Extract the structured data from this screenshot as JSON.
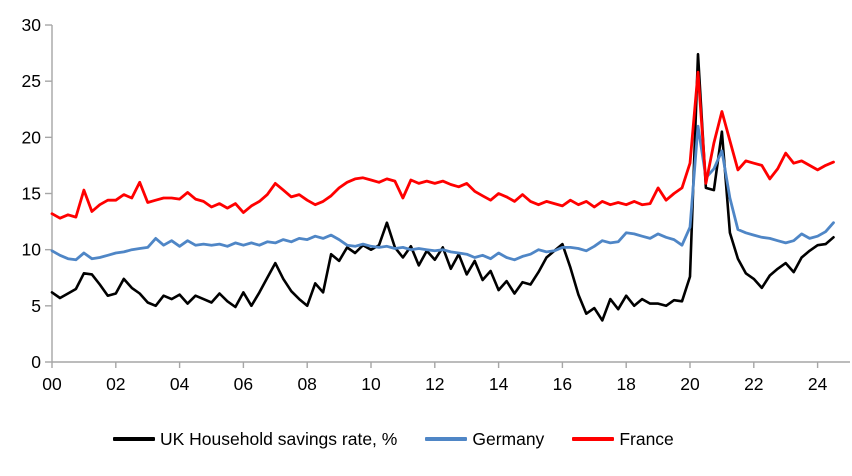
{
  "chart_data": {
    "type": "line",
    "title": "",
    "x_frequency": "quarterly",
    "x_range": [
      "2000 Q1",
      "2024 Q3"
    ],
    "x_tick_labels": [
      "00",
      "02",
      "04",
      "06",
      "08",
      "10",
      "12",
      "14",
      "16",
      "18",
      "20",
      "22",
      "24"
    ],
    "y_tick_labels": [
      "0",
      "5",
      "10",
      "15",
      "20",
      "25",
      "30"
    ],
    "y_ticks": [
      0,
      5,
      10,
      15,
      20,
      25,
      30
    ],
    "ylim": [
      0,
      30
    ],
    "grid": false,
    "legend_position": "bottom",
    "axis_color": "#a6a6a6",
    "text_color": "#000000",
    "series": [
      {
        "id": "uk",
        "name": "UK Household savings rate, %",
        "color": "#000000",
        "stroke_width": 2.6,
        "values": [
          6.2,
          5.7,
          6.1,
          6.5,
          7.9,
          7.8,
          6.9,
          5.9,
          6.1,
          7.4,
          6.6,
          6.1,
          5.3,
          5.0,
          5.9,
          5.6,
          6.0,
          5.2,
          5.9,
          5.6,
          5.3,
          6.1,
          5.4,
          4.9,
          6.2,
          5.0,
          6.2,
          7.5,
          8.8,
          7.4,
          6.3,
          5.6,
          5.0,
          7.0,
          6.2,
          9.6,
          9.0,
          10.2,
          9.7,
          10.4,
          10.0,
          10.4,
          12.4,
          10.2,
          9.3,
          10.3,
          8.6,
          9.9,
          9.1,
          10.2,
          8.3,
          9.6,
          7.8,
          9.0,
          7.3,
          8.1,
          6.4,
          7.2,
          6.1,
          7.1,
          6.9,
          8.0,
          9.3,
          9.9,
          10.5,
          8.4,
          6.0,
          4.3,
          4.8,
          3.7,
          5.6,
          4.7,
          5.9,
          5.0,
          5.6,
          5.2,
          5.2,
          5.0,
          5.5,
          5.4,
          7.6,
          27.4,
          15.5,
          15.3,
          20.5,
          11.5,
          9.2,
          7.9,
          7.4,
          6.6,
          7.7,
          8.3,
          8.8,
          8.0,
          9.3,
          9.9,
          10.4,
          10.5,
          11.1
        ]
      },
      {
        "id": "germany",
        "name": "Germany",
        "color": "#4f86c6",
        "stroke_width": 2.8,
        "values": [
          9.9,
          9.5,
          9.2,
          9.1,
          9.7,
          9.2,
          9.3,
          9.5,
          9.7,
          9.8,
          10.0,
          10.1,
          10.2,
          11.0,
          10.4,
          10.8,
          10.3,
          10.8,
          10.4,
          10.5,
          10.4,
          10.5,
          10.3,
          10.6,
          10.4,
          10.6,
          10.4,
          10.7,
          10.6,
          10.9,
          10.7,
          11.0,
          10.9,
          11.2,
          11.0,
          11.3,
          10.9,
          10.4,
          10.3,
          10.5,
          10.3,
          10.2,
          10.3,
          10.1,
          10.2,
          10.0,
          10.1,
          10.0,
          9.9,
          10.0,
          9.8,
          9.7,
          9.6,
          9.3,
          9.5,
          9.2,
          9.7,
          9.3,
          9.1,
          9.4,
          9.6,
          10.0,
          9.8,
          9.9,
          10.2,
          10.2,
          10.1,
          9.9,
          10.3,
          10.8,
          10.6,
          10.7,
          11.5,
          11.4,
          11.2,
          11.0,
          11.4,
          11.1,
          10.9,
          10.4,
          12.0,
          21.0,
          16.4,
          17.2,
          18.8,
          14.6,
          11.8,
          11.5,
          11.3,
          11.1,
          11.0,
          10.8,
          10.6,
          10.8,
          11.4,
          11.0,
          11.2,
          11.6,
          12.4
        ]
      },
      {
        "id": "france",
        "name": "France",
        "color": "#ff0000",
        "stroke_width": 2.8,
        "values": [
          13.2,
          12.8,
          13.1,
          12.9,
          15.3,
          13.4,
          14.0,
          14.4,
          14.4,
          14.9,
          14.6,
          16.0,
          14.2,
          14.4,
          14.6,
          14.6,
          14.5,
          15.1,
          14.5,
          14.3,
          13.8,
          14.1,
          13.7,
          14.1,
          13.3,
          13.9,
          14.3,
          14.9,
          15.9,
          15.3,
          14.7,
          14.9,
          14.4,
          14.0,
          14.3,
          14.8,
          15.5,
          16.0,
          16.3,
          16.4,
          16.2,
          16.0,
          16.3,
          16.1,
          14.6,
          16.2,
          15.9,
          16.1,
          15.9,
          16.1,
          15.8,
          15.6,
          15.9,
          15.2,
          14.8,
          14.4,
          15.0,
          14.7,
          14.3,
          14.9,
          14.3,
          14.0,
          14.3,
          14.1,
          13.9,
          14.4,
          14.0,
          14.3,
          13.8,
          14.3,
          14.0,
          14.2,
          14.0,
          14.3,
          14.0,
          14.1,
          15.5,
          14.4,
          15.0,
          15.5,
          17.7,
          25.8,
          15.9,
          19.5,
          22.3,
          19.7,
          17.1,
          17.9,
          17.7,
          17.5,
          16.3,
          17.2,
          18.6,
          17.7,
          17.9,
          17.5,
          17.1,
          17.5,
          17.8
        ]
      }
    ]
  }
}
